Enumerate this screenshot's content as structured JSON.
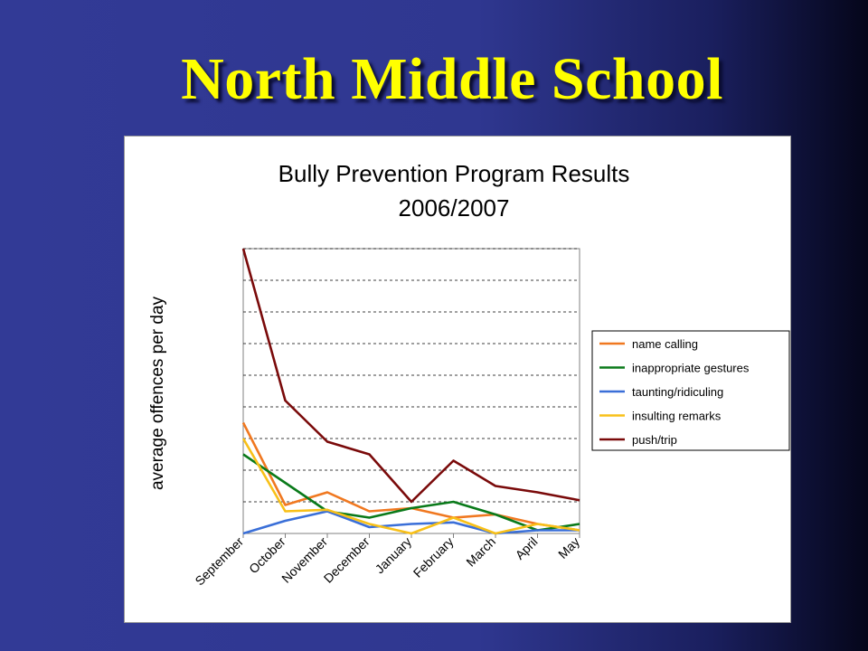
{
  "slide": {
    "title": "North Middle School"
  },
  "chart_data": {
    "type": "line",
    "title": "Bully Prevention Program Results",
    "subtitle": "2006/2007",
    "ylabel": "average offences per day",
    "xlabel": "",
    "categories": [
      "September",
      "October",
      "November",
      "December",
      "January",
      "February",
      "March",
      "April",
      "May"
    ],
    "ylim": [
      0,
      9
    ],
    "grid": true,
    "legend_position": "right",
    "series": [
      {
        "name": "name calling",
        "color": "#f07820",
        "values": [
          3.5,
          0.9,
          1.3,
          0.7,
          0.8,
          0.5,
          0.6,
          0.3,
          0.1
        ]
      },
      {
        "name": "inappropriate gestures",
        "color": "#0a7a1a",
        "values": [
          2.5,
          1.6,
          0.7,
          0.5,
          0.8,
          1.0,
          0.6,
          0.1,
          0.3
        ]
      },
      {
        "name": "taunting/ridiculing",
        "color": "#3a6fd8",
        "values": [
          0.0,
          0.4,
          0.7,
          0.2,
          0.3,
          0.35,
          0.0,
          0.1,
          0.1
        ]
      },
      {
        "name": "insulting remarks",
        "color": "#f8c018",
        "values": [
          3.0,
          0.7,
          0.75,
          0.3,
          0.0,
          0.5,
          0.0,
          0.3,
          0.1
        ]
      },
      {
        "name": "push/trip",
        "color": "#7a0a0a",
        "values": [
          9.0,
          4.2,
          2.9,
          2.5,
          1.0,
          2.3,
          1.5,
          1.3,
          1.05
        ]
      }
    ]
  }
}
